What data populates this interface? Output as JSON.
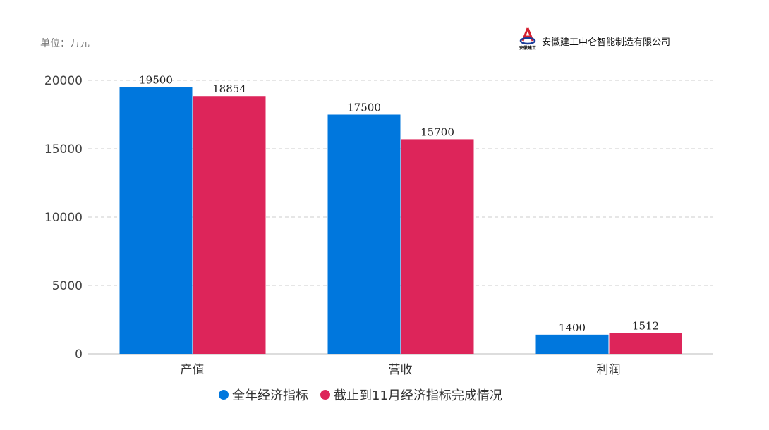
{
  "unit_label": "单位：万元",
  "company": {
    "name": "安徽建工中仑智能制造有限公司",
    "logo_text": "安徽建工"
  },
  "chart_data": {
    "type": "bar",
    "categories": [
      "产值",
      "营收",
      "利润"
    ],
    "series": [
      {
        "name": "全年经济指标",
        "color": "#0077DD",
        "values": [
          19500,
          17500,
          1400
        ]
      },
      {
        "name": "截止到11月经济指标完成情况",
        "color": "#DD255A",
        "values": [
          18854,
          15700,
          1512
        ]
      }
    ],
    "yticks": [
      0,
      5000,
      10000,
      15000,
      20000
    ],
    "ylim": [
      0,
      20000
    ],
    "grid": true,
    "legend": "bottom",
    "data_labels": true
  }
}
